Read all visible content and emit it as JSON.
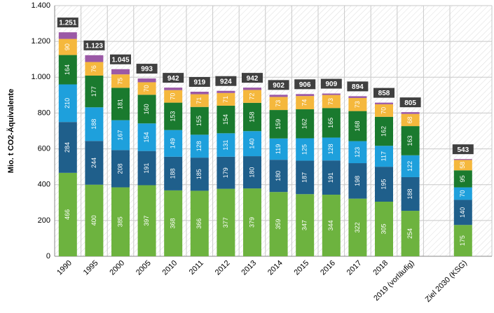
{
  "chart_data": {
    "type": "stacked-bar",
    "y_label": "Mio. t CO2-Äquivalente",
    "categories": [
      "1990",
      "1995",
      "2000",
      "2005",
      "2010",
      "2011",
      "2012",
      "2013",
      "2014",
      "2015",
      "2016",
      "2017",
      "2018",
      "2019 (vorläufig)",
      null,
      "Ziel 2030 (KSG)"
    ],
    "series": [
      {
        "color": "#6db33f",
        "values": [
          466,
          400,
          385,
          397,
          368,
          366,
          377,
          379,
          359,
          347,
          344,
          322,
          305,
          254,
          null,
          175
        ]
      },
      {
        "color": "#1f5f8b",
        "values": [
          284,
          244,
          208,
          191,
          188,
          185,
          179,
          180,
          180,
          187,
          191,
          198,
          195,
          188,
          null,
          140
        ]
      },
      {
        "color": "#1ea0dc",
        "values": [
          210,
          188,
          167,
          154,
          149,
          128,
          131,
          140,
          119,
          125,
          128,
          123,
          117,
          122,
          null,
          70
        ]
      },
      {
        "color": "#1a7a2e",
        "values": [
          164,
          177,
          181,
          160,
          153,
          155,
          154,
          158,
          159,
          162,
          165,
          168,
          162,
          163,
          null,
          95
        ]
      },
      {
        "color": "#f5b83d",
        "values": [
          90,
          76,
          75,
          70,
          70,
          71,
          71,
          72,
          73,
          74,
          73,
          73,
          70,
          68,
          null,
          58
        ]
      },
      {
        "color": "#9b59a6",
        "values": [
          37,
          38,
          29,
          21,
          14,
          14,
          12,
          13,
          12,
          11,
          8,
          10,
          9,
          10,
          null,
          5
        ],
        "labeled": false
      }
    ],
    "totals": {
      "values": [
        1251,
        1123,
        1045,
        993,
        942,
        919,
        924,
        942,
        902,
        906,
        909,
        894,
        858,
        805,
        null,
        543
      ],
      "value_labels": [
        "1.251",
        "1.123",
        "1.045",
        "993",
        "942",
        "919",
        "924",
        "942",
        "902",
        "906",
        "909",
        "894",
        "858",
        "805",
        null,
        "543"
      ]
    },
    "ylim": [
      0,
      1400
    ],
    "yticks": [
      0,
      200,
      400,
      600,
      800,
      {
        "value": 1000,
        "label": "1.000"
      },
      {
        "value": 1200,
        "label": "1.200"
      },
      {
        "value": 1400,
        "label": "1.400"
      }
    ],
    "grid": true
  }
}
